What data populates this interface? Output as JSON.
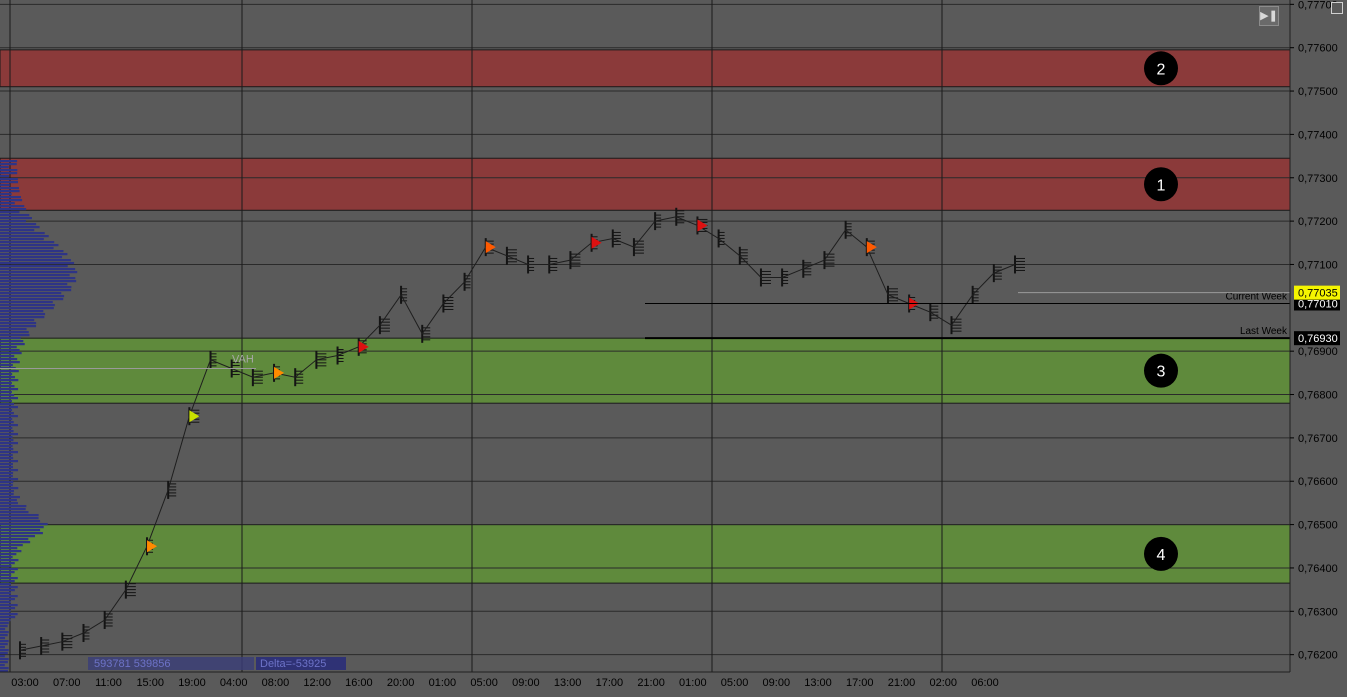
{
  "chart_data": {
    "type": "line",
    "title": "",
    "xlabel": "",
    "ylabel": "",
    "ylim": [
      0.7616,
      0.7771
    ],
    "y_ticks": [
      "0,77700",
      "0,77600",
      "0,77500",
      "0,77400",
      "0,77300",
      "0,77200",
      "0,77100",
      "0,77010",
      "0,76900",
      "0,76800",
      "0,76700",
      "0,76600",
      "0,76500",
      "0,76400",
      "0,76300",
      "0,76200"
    ],
    "y_tick_values": [
      0.777,
      0.776,
      0.775,
      0.774,
      0.773,
      0.772,
      0.771,
      0.7701,
      0.769,
      0.768,
      0.767,
      0.766,
      0.765,
      0.764,
      0.763,
      0.762
    ],
    "x_ticks": [
      "03:00",
      "07:00",
      "11:00",
      "15:00",
      "19:00",
      "04:00",
      "08:00",
      "12:00",
      "16:00",
      "20:00",
      "01:00",
      "05:00",
      "09:00",
      "13:00",
      "17:00",
      "21:00",
      "01:00",
      "05:00",
      "09:00",
      "13:00",
      "17:00",
      "21:00",
      "02:00",
      "06:00"
    ],
    "zones": [
      {
        "label": "2",
        "y_from": 0.7751,
        "y_to": 0.77595,
        "color": "#8b3a3a"
      },
      {
        "label": "1",
        "y_from": 0.77225,
        "y_to": 0.77345,
        "color": "#8b3a3a"
      },
      {
        "label": "3",
        "y_from": 0.7678,
        "y_to": 0.7693,
        "color": "#5f8a3c"
      },
      {
        "label": "4",
        "y_from": 0.76365,
        "y_to": 0.765,
        "color": "#5f8a3c"
      }
    ],
    "levels": [
      {
        "name": "Current Week",
        "value": 0.7701,
        "price_label": "0,77010"
      },
      {
        "name": "Last Week",
        "value": 0.7693,
        "price_label": "0,76930"
      }
    ],
    "current_price": {
      "value": 0.77035,
      "label": "0,77035"
    },
    "vah": {
      "label": "VAH",
      "value": 0.7686
    },
    "footer": {
      "volume_text": "593781 539856",
      "delta_text": "Delta=-53925"
    },
    "series": [
      {
        "x": [
          "03:00",
          "05:00",
          "07:00",
          "09:00",
          "11:00",
          "13:00",
          "15:00",
          "17:00",
          "19:00",
          "21:00",
          "23:00",
          "04:00",
          "06:00",
          "08:00",
          "10:00",
          "12:00",
          "14:00",
          "16:00",
          "18:00",
          "20:00",
          "22:00",
          "01:00",
          "03:00",
          "05:00",
          "07:00",
          "09:00",
          "11:00",
          "13:00",
          "15:00",
          "17:00",
          "19:00",
          "21:00",
          "23:00",
          "01:00",
          "03:00",
          "05:00",
          "07:00",
          "09:00",
          "11:00",
          "13:00",
          "15:00",
          "17:00",
          "19:00",
          "21:00",
          "23:00",
          "02:00",
          "04:00",
          "06:00"
        ],
        "values": [
          0.7621,
          0.7622,
          0.7623,
          0.7625,
          0.7628,
          0.7635,
          0.7645,
          0.7658,
          0.7675,
          0.7688,
          0.7686,
          0.7684,
          0.7685,
          0.7684,
          0.7688,
          0.7689,
          0.7691,
          0.7696,
          0.7703,
          0.7694,
          0.7701,
          0.7706,
          0.7714,
          0.7712,
          0.771,
          0.771,
          0.7711,
          0.7715,
          0.7716,
          0.7714,
          0.772,
          0.7721,
          0.7719,
          0.7716,
          0.7712,
          0.7707,
          0.7707,
          0.7709,
          0.7711,
          0.7718,
          0.7714,
          0.7703,
          0.7701,
          0.7699,
          0.7696,
          0.7703,
          0.7708,
          0.771
        ]
      }
    ],
    "accent_colors": {
      "zone_red": "#8b3a3a",
      "zone_green": "#5f8a3c",
      "profile": "#2e3486",
      "price_tag": "#f5f500"
    }
  },
  "controls": {
    "end_button_icon": "skip-to-end-icon",
    "corner_icon": "restore-window-icon"
  }
}
